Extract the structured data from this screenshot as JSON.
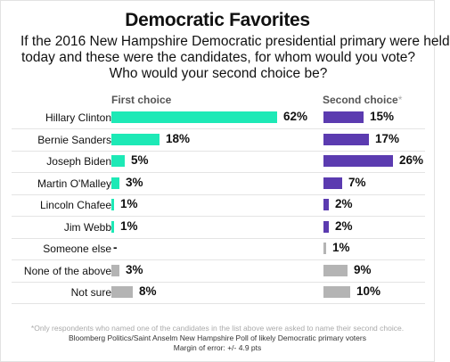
{
  "title": "Democratic Favorites",
  "subtitle_lines": [
    "If the 2016 New Hampshire Democratic presidential primary were held",
    "today and these were the candidates, for whom would you vote?",
    "Who would your second choice be?"
  ],
  "colors": {
    "first_choice": "#1de9b6",
    "second_choice": "#5b3bb0",
    "other": "#b4b4b4"
  },
  "chart_data": {
    "type": "bar",
    "orientation": "horizontal",
    "title": "Democratic Favorites",
    "categories": [
      "Hillary Clinton",
      "Bernie Sanders",
      "Joseph Biden",
      "Martin O'Malley",
      "Lincoln Chafee",
      "Jim Webb",
      "Someone else",
      "None of the above",
      "Not sure"
    ],
    "series": [
      {
        "name": "First choice",
        "values": [
          62,
          18,
          5,
          3,
          1,
          1,
          null,
          3,
          8
        ],
        "labels": [
          "62%",
          "18%",
          "5%",
          "3%",
          "1%",
          "1%",
          "-",
          "3%",
          "8%"
        ]
      },
      {
        "name": "Second choice",
        "name_suffix": "*",
        "values": [
          15,
          17,
          26,
          7,
          2,
          2,
          1,
          9,
          10
        ],
        "labels": [
          "15%",
          "17%",
          "26%",
          "7%",
          "2%",
          "2%",
          "1%",
          "9%",
          "10%"
        ]
      }
    ],
    "grey_categories": [
      "Someone else",
      "None of the above",
      "Not sure"
    ],
    "grid": false,
    "legend": "column headers"
  },
  "footnote": "*Only respondents who named one of the candidates in the list above were asked to name their second choice.",
  "source": "Bloomberg Politics/Saint Anselm New Hampshire Poll of likely Democratic primary voters",
  "margin_of_error": "Margin of error: +/- 4.9 pts"
}
